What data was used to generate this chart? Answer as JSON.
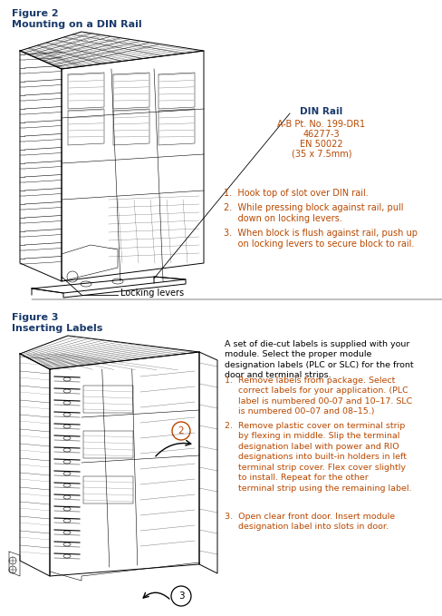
{
  "bg_color": "#ffffff",
  "fig_width": 4.89,
  "fig_height": 6.79,
  "dpi": 100,
  "figure2_label": "Figure 2",
  "figure2_title": "Mounting on a DIN Rail",
  "din_rail_label": "DIN Rail",
  "din_rail_info_line1": "A-B Pt. No. 199-DR1",
  "din_rail_info_line2": "46277-3",
  "din_rail_info_line3": "EN 50022",
  "din_rail_info_line4": "(35 x 7.5mm)",
  "fig2_steps": [
    [
      "1.  ",
      "Hook top of slot over DIN rail."
    ],
    [
      "2.  ",
      "While pressing block against rail, pull\n     down on locking levers."
    ],
    [
      "3.  ",
      "When block is flush against rail, push up\n     on locking levers to secure block to rail."
    ]
  ],
  "locking_levers_label": "Locking levers",
  "figure3_label": "Figure 3",
  "figure3_title": "Inserting Labels",
  "fig3_intro": "A set of die-cut labels is supplied with your\nmodule. Select the proper module\ndesignation labels (PLC or SLC) for the front\ndoor and terminal strips.",
  "fig3_steps": [
    [
      "1.  ",
      "Remove labels from package. Select\n     correct labels for your application. (PLC\n     label is numbered 00-07 and 10–17. SLC\n     is numbered 00–07 and 08–15.)"
    ],
    [
      "2.  ",
      "Remove plastic cover on terminal strip\n     by flexing in middle. Slip the terminal\n     designation label with power and RIO\n     designations into built-in holders in left\n     terminal strip cover. Flex cover slightly\n     to install. Repeat for the other\n     terminal strip using the remaining label."
    ],
    [
      "3.  ",
      "Open clear front door. Insert module\n     designation label into slots in door."
    ]
  ],
  "header_color": "#1a3a6b",
  "step_color": "#b84800",
  "din_info_color": "#b84800",
  "text_color": "#000000",
  "intro_color": "#000000"
}
